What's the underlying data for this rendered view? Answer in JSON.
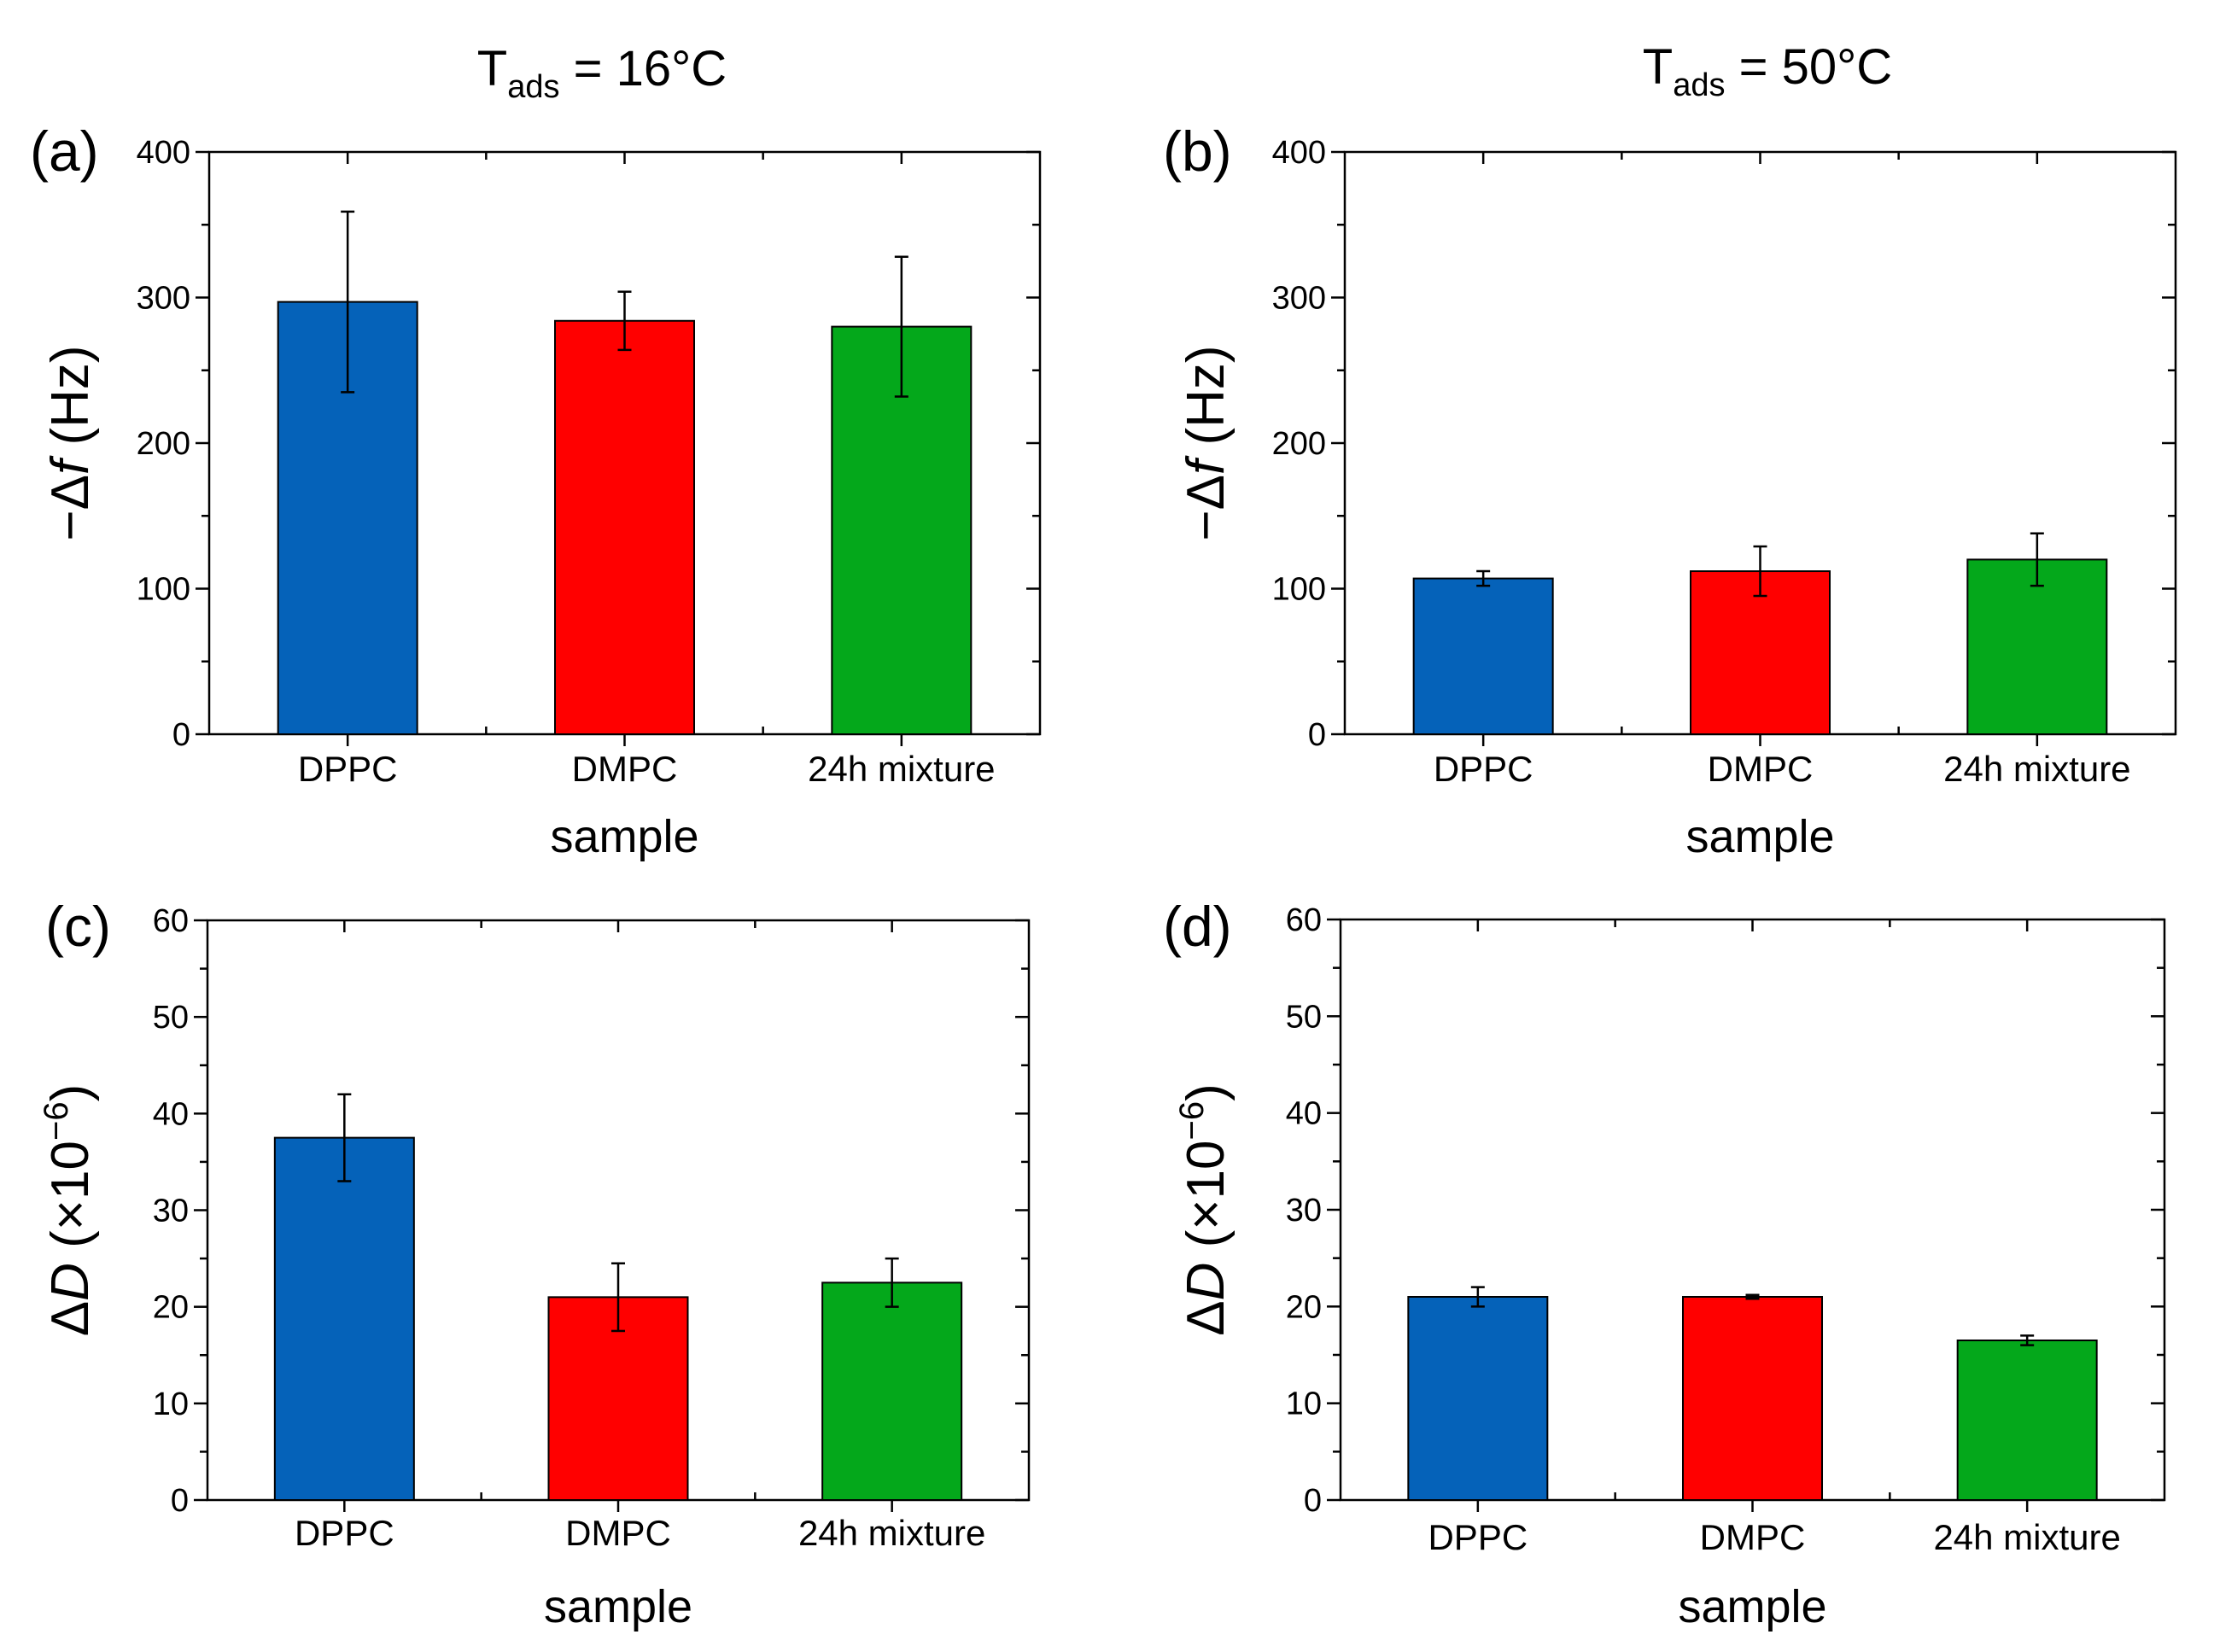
{
  "column_titles": [
    {
      "main": "T",
      "sub": "ads",
      "rest": " = 16°C"
    },
    {
      "main": "T",
      "sub": "ads",
      "rest": " = 50°C"
    }
  ],
  "colors": {
    "DPPC": "#0562b9",
    "DMPC": "#ff0000",
    "24h mixture": "#04a81b"
  },
  "chart_data": [
    {
      "type": "bar",
      "panel_label": "(a)",
      "categories": [
        "DPPC",
        "DMPC",
        "24h mixture"
      ],
      "values": [
        297,
        284,
        280
      ],
      "errors": [
        62,
        20,
        48
      ],
      "xlabel": "sample",
      "ylabel": {
        "prefix": "−Δ",
        "sym": "f",
        "unit": " (Hz)"
      },
      "ylim": [
        0,
        400
      ],
      "yticks": [
        0,
        100,
        200,
        300,
        400
      ],
      "minor_step": 50
    },
    {
      "type": "bar",
      "panel_label": "(b)",
      "categories": [
        "DPPC",
        "DMPC",
        "24h mixture"
      ],
      "values": [
        107,
        112,
        120
      ],
      "errors": [
        5,
        17,
        18
      ],
      "xlabel": "sample",
      "ylabel": {
        "prefix": "−Δ",
        "sym": "f",
        "unit": " (Hz)"
      },
      "ylim": [
        0,
        400
      ],
      "yticks": [
        0,
        100,
        200,
        300,
        400
      ],
      "minor_step": 50
    },
    {
      "type": "bar",
      "panel_label": "(c)",
      "categories": [
        "DPPC",
        "DMPC",
        "24h mixture"
      ],
      "values": [
        37.5,
        21,
        22.5
      ],
      "errors": [
        4.5,
        3.5,
        2.5
      ],
      "xlabel": "sample",
      "ylabel": {
        "prefix": "Δ",
        "sym": "D",
        "unit": " (×10",
        "sup": "−6",
        "close": ")"
      },
      "ylim": [
        0,
        60
      ],
      "yticks": [
        0,
        10,
        20,
        30,
        40,
        50,
        60
      ],
      "minor_step": 5
    },
    {
      "type": "bar",
      "panel_label": "(d)",
      "categories": [
        "DPPC",
        "DMPC",
        "24h mixture"
      ],
      "values": [
        21,
        21,
        16.5
      ],
      "errors": [
        1,
        0.2,
        0.5
      ],
      "xlabel": "sample",
      "ylabel": {
        "prefix": "Δ",
        "sym": "D",
        "unit": " (×10",
        "sup": "−6",
        "close": ")"
      },
      "ylim": [
        0,
        60
      ],
      "yticks": [
        0,
        10,
        20,
        30,
        40,
        50,
        60
      ],
      "minor_step": 5
    }
  ]
}
